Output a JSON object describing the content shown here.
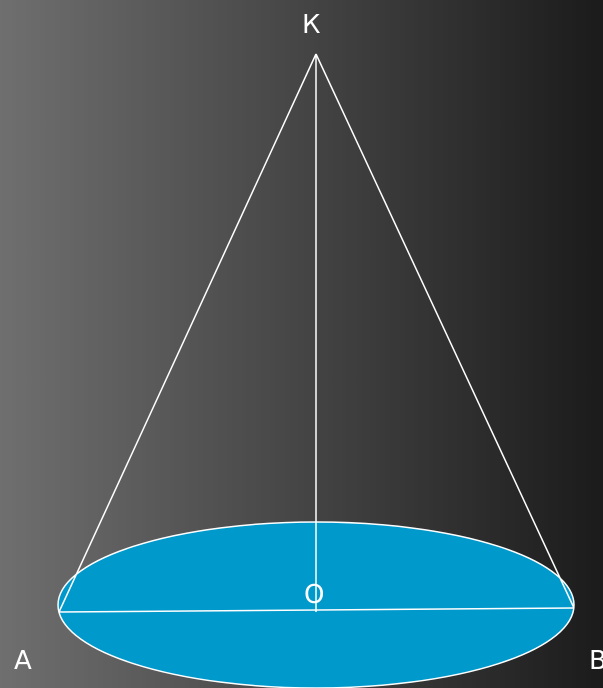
{
  "colors": {
    "background_light": "#6f6f6f",
    "background_dark": "#1b1b1b",
    "base_fill": "#0099cc",
    "line": "#ffffff"
  },
  "labels": {
    "apex": "К",
    "center": "О",
    "left": "А",
    "right": "В"
  }
}
